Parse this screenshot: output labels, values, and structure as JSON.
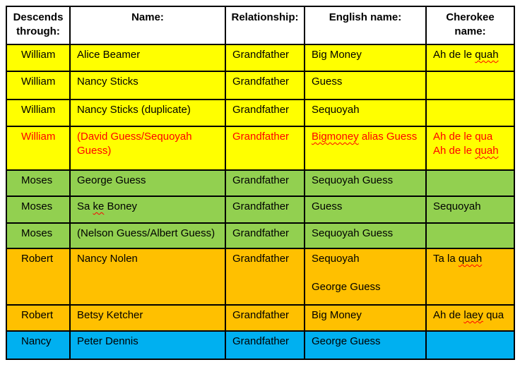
{
  "colors": {
    "yellow": "#FFFF00",
    "green": "#92D050",
    "orange": "#FFC000",
    "blue": "#00B0F0",
    "red_text": "#FF0000",
    "black_text": "#000000",
    "border": "#000000",
    "page_background": "#FFFFFF"
  },
  "table": {
    "columns": [
      {
        "id": "descends",
        "label": "Descends through:"
      },
      {
        "id": "name",
        "label": "Name:"
      },
      {
        "id": "relationship",
        "label": "Relationship:"
      },
      {
        "id": "english",
        "label": "English name:"
      },
      {
        "id": "cherokee",
        "label": "Cherokee name:"
      }
    ],
    "rows": [
      {
        "bg": "yellow",
        "cells": {
          "descends": "William",
          "name": "Alice Beamer",
          "relationship": "Grandfather",
          "english": "Big Money",
          "cherokee": [
            [
              {
                "text": "Ah de le "
              },
              {
                "text": "quah",
                "misspelled": true
              }
            ]
          ]
        }
      },
      {
        "bg": "yellow",
        "cells": {
          "descends": "William",
          "name": "Nancy Sticks",
          "relationship": "Grandfather",
          "english": "Guess",
          "cherokee": ""
        }
      },
      {
        "bg": "yellow",
        "cells": {
          "descends": "William",
          "name": "Nancy Sticks (duplicate)",
          "relationship": "Grandfather",
          "english": "Sequoyah",
          "cherokee": ""
        }
      },
      {
        "bg": "yellow",
        "fg": "red_text",
        "cells": {
          "descends": "William",
          "name": "(David Guess/Sequoyah Guess)",
          "relationship": "Grandfather",
          "english": [
            [
              {
                "text": "Bigmoney",
                "misspelled": true
              },
              {
                "text": " alias Guess"
              }
            ]
          ],
          "cherokee": [
            "Ah de le qua",
            [
              {
                "text": "Ah de le "
              },
              {
                "text": "quah",
                "misspelled": true
              }
            ]
          ]
        }
      },
      {
        "bg": "green",
        "cells": {
          "descends": "Moses",
          "name": "George Guess",
          "relationship": "Grandfather",
          "english": "Sequoyah Guess",
          "cherokee": ""
        }
      },
      {
        "bg": "green",
        "cells": {
          "descends": "Moses",
          "name": [
            [
              {
                "text": "Sa "
              },
              {
                "text": "ke",
                "misspelled": true
              },
              {
                "text": " Boney"
              }
            ]
          ],
          "relationship": "Grandfather",
          "english": "Guess",
          "cherokee": "Sequoyah"
        }
      },
      {
        "bg": "green",
        "cells": {
          "descends": "Moses",
          "name": "(Nelson Guess/Albert Guess)",
          "relationship": "Grandfather",
          "english": "Sequoyah Guess",
          "cherokee": ""
        }
      },
      {
        "bg": "orange",
        "cells": {
          "descends": "Robert",
          "name": "Nancy Nolen",
          "relationship": "Grandfather",
          "english": [
            "Sequoyah",
            "",
            "George Guess"
          ],
          "cherokee": [
            [
              {
                "text": "Ta la "
              },
              {
                "text": "quah",
                "misspelled": true
              }
            ]
          ]
        }
      },
      {
        "bg": "orange",
        "cells": {
          "descends": "Robert",
          "name": "Betsy Ketcher",
          "relationship": "Grandfather",
          "english": "Big Money",
          "cherokee": [
            [
              {
                "text": "Ah de "
              },
              {
                "text": "laey",
                "misspelled": true
              },
              {
                "text": " qua"
              }
            ]
          ]
        }
      },
      {
        "bg": "blue",
        "cells": {
          "descends": "Nancy",
          "name": "Peter Dennis",
          "relationship": "Grandfather",
          "english": "George Guess",
          "cherokee": ""
        }
      }
    ]
  }
}
